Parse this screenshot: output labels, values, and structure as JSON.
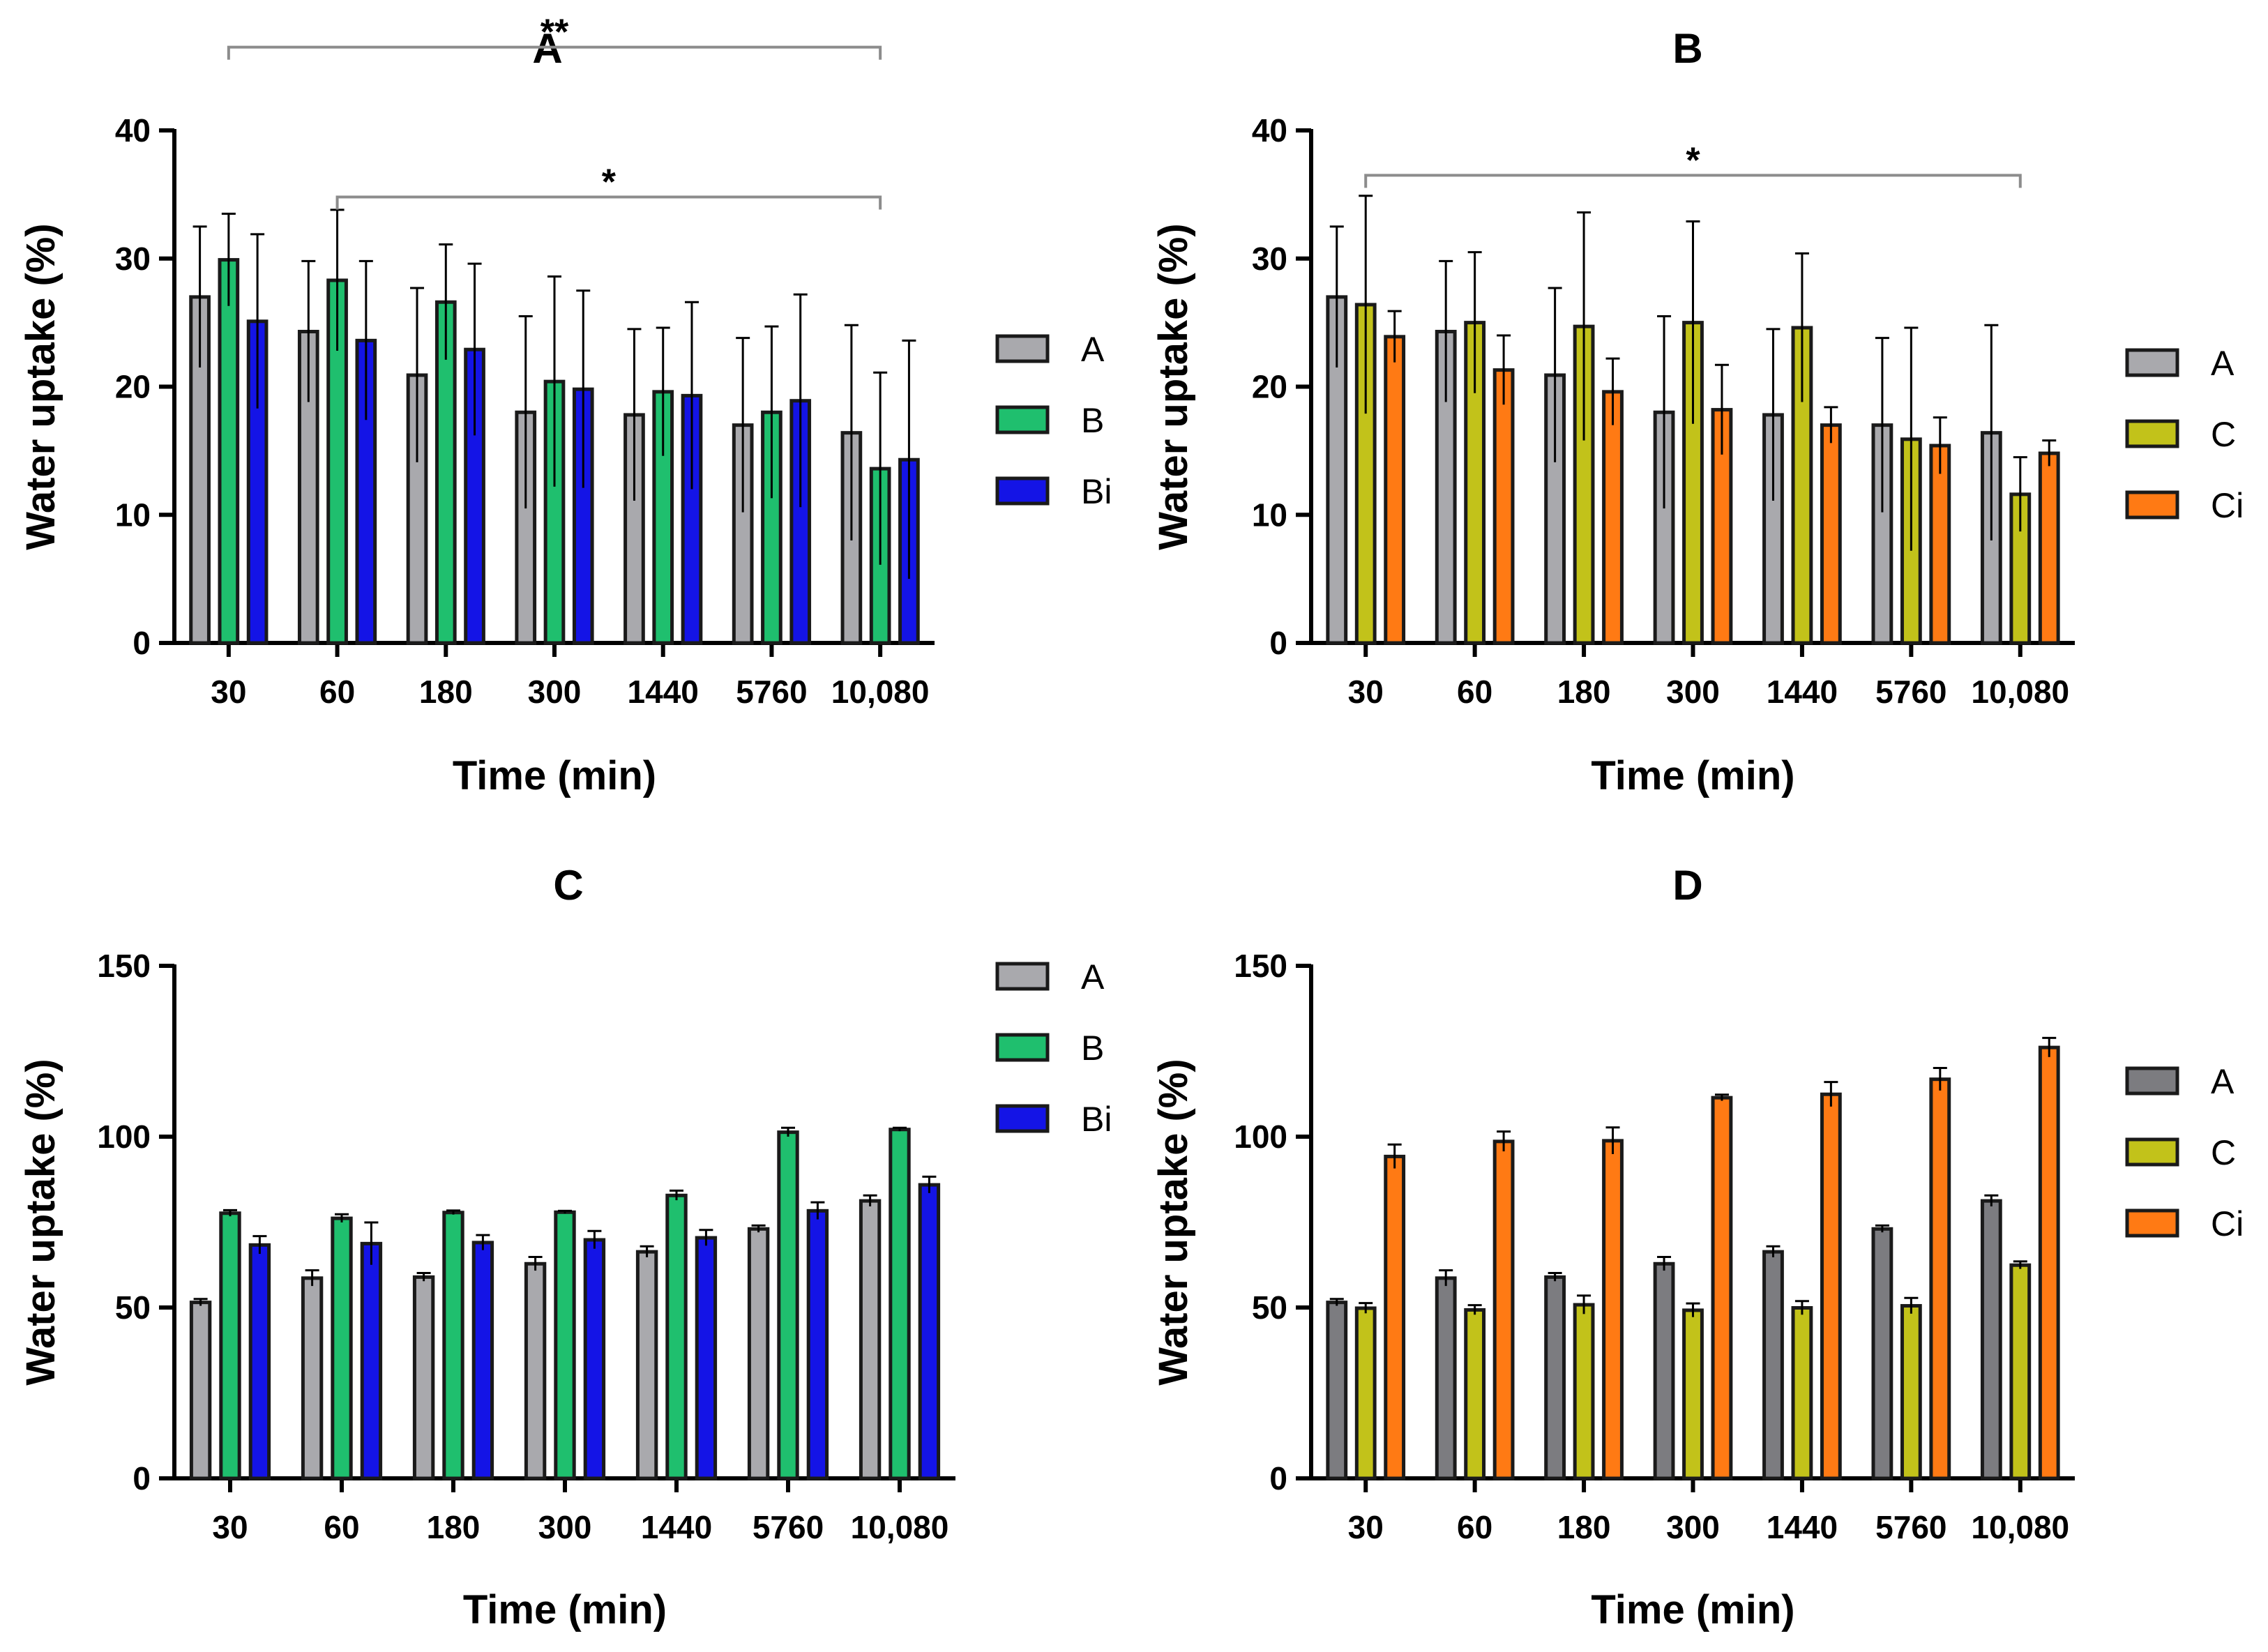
{
  "colors": {
    "A": "#a9a9ad",
    "A_dark": "#7c7c80",
    "B": "#1fbf6e",
    "Bi": "#1414e6",
    "C": "#c2c21a",
    "Ci": "#ff7a14",
    "bracket": "#8c8c8c"
  },
  "chart_data": [
    {
      "id": "A",
      "type": "bar",
      "title": "A",
      "xlabel": "Time (min)",
      "ylabel": "Water uptake (%)",
      "ylim": [
        0,
        40
      ],
      "yticks": [
        "0",
        "10",
        "20",
        "30",
        "40"
      ],
      "categories": [
        "30",
        "60",
        "180",
        "300",
        "1440",
        "5760",
        "10,080"
      ],
      "legend": [
        "A",
        "B",
        "Bi"
      ],
      "series": [
        {
          "name": "A",
          "color_key": "A",
          "values": [
            27,
            24.3,
            20.9,
            18,
            17.8,
            17,
            16.4
          ],
          "errors": [
            5.5,
            5.5,
            6.8,
            7.5,
            6.7,
            6.8,
            8.4
          ]
        },
        {
          "name": "B",
          "color_key": "B",
          "values": [
            29.9,
            28.3,
            26.6,
            20.4,
            19.6,
            18,
            13.6
          ],
          "errors": [
            3.6,
            5.5,
            4.5,
            8.2,
            5,
            6.7,
            7.5
          ]
        },
        {
          "name": "Bi",
          "color_key": "Bi",
          "values": [
            25.1,
            23.6,
            22.9,
            19.8,
            19.3,
            18.9,
            14.3
          ],
          "errors": [
            6.8,
            6.2,
            6.7,
            7.7,
            7.3,
            8.3,
            9.3
          ]
        }
      ],
      "significance": [
        {
          "label": "**",
          "from": "30",
          "to": "10,080",
          "level": 46.5
        },
        {
          "label": "*",
          "from": "60",
          "to": "10,080",
          "level": 34.8
        }
      ]
    },
    {
      "id": "B",
      "type": "bar",
      "title": "B",
      "xlabel": "Time (min)",
      "ylabel": "Water uptake (%)",
      "ylim": [
        0,
        40
      ],
      "yticks": [
        "0",
        "10",
        "20",
        "30",
        "40"
      ],
      "categories": [
        "30",
        "60",
        "180",
        "300",
        "1440",
        "5760",
        "10,080"
      ],
      "legend": [
        "A",
        "C",
        "Ci"
      ],
      "series": [
        {
          "name": "A",
          "color_key": "A",
          "values": [
            27,
            24.3,
            20.9,
            18,
            17.8,
            17,
            16.4
          ],
          "errors": [
            5.5,
            5.5,
            6.8,
            7.5,
            6.7,
            6.8,
            8.4
          ]
        },
        {
          "name": "C",
          "color_key": "C",
          "values": [
            26.4,
            25,
            24.7,
            25,
            24.6,
            15.9,
            11.6
          ],
          "errors": [
            8.5,
            5.5,
            8.9,
            7.9,
            5.8,
            8.7,
            2.9
          ]
        },
        {
          "name": "Ci",
          "color_key": "Ci",
          "values": [
            23.9,
            21.3,
            19.6,
            18.2,
            17,
            15.4,
            14.8
          ],
          "errors": [
            2,
            2.7,
            2.6,
            3.5,
            1.4,
            2.2,
            1
          ]
        }
      ],
      "significance": [
        {
          "label": "*",
          "from": "30",
          "to": "10,080",
          "level": 36.5
        }
      ]
    },
    {
      "id": "C",
      "type": "bar",
      "title": "C",
      "xlabel": "Time (min)",
      "ylabel": "Water uptake (%)",
      "ylim": [
        0,
        150
      ],
      "yticks": [
        "0",
        "50",
        "100",
        "150"
      ],
      "categories": [
        "30",
        "60",
        "180",
        "300",
        "1440",
        "5760",
        "10,080"
      ],
      "legend": [
        "A",
        "B",
        "Bi"
      ],
      "series": [
        {
          "name": "A",
          "color_key": "A",
          "values": [
            51.5,
            58.6,
            58.9,
            62.8,
            66.3,
            73,
            81.2
          ],
          "errors": [
            1,
            2.3,
            1.2,
            2,
            1.6,
            1,
            1.6
          ]
        },
        {
          "name": "B",
          "color_key": "B",
          "values": [
            77.6,
            76.1,
            77.8,
            77.9,
            82.8,
            101.3,
            102.1
          ],
          "errors": [
            0.9,
            1.2,
            0.6,
            0.4,
            1.4,
            1.3,
            0.5
          ]
        },
        {
          "name": "Bi",
          "color_key": "Bi",
          "values": [
            68.3,
            68.7,
            69,
            69.8,
            70.4,
            78.3,
            85.9
          ],
          "errors": [
            2.6,
            6.2,
            2.2,
            2.6,
            2.3,
            2.5,
            2.4
          ]
        }
      ],
      "significance": []
    },
    {
      "id": "D",
      "type": "bar",
      "title": "D",
      "xlabel": "Time (min)",
      "ylabel": "Water uptake (%)",
      "ylim": [
        0,
        150
      ],
      "yticks": [
        "0",
        "50",
        "100",
        "150"
      ],
      "categories": [
        "30",
        "60",
        "180",
        "300",
        "1440",
        "5760",
        "10,080"
      ],
      "legend": [
        "A",
        "C",
        "Ci"
      ],
      "series": [
        {
          "name": "A",
          "color_key": "A_dark",
          "values": [
            51.5,
            58.6,
            58.9,
            62.8,
            66.3,
            73,
            81.2
          ],
          "errors": [
            1,
            2.3,
            1.2,
            2,
            1.6,
            1,
            1.6
          ]
        },
        {
          "name": "C",
          "color_key": "C",
          "values": [
            49.8,
            49.3,
            50.8,
            49.2,
            49.9,
            50.5,
            62.4
          ],
          "errors": [
            1.5,
            1.4,
            2.7,
            2,
            2,
            2.3,
            1.1
          ]
        },
        {
          "name": "Ci",
          "color_key": "Ci",
          "values": [
            94.2,
            98.6,
            98.8,
            111.4,
            112.4,
            116.8,
            126.1
          ],
          "errors": [
            3.5,
            2.9,
            3.9,
            0.9,
            3.6,
            3.3,
            2.8
          ]
        }
      ],
      "significance": []
    }
  ]
}
